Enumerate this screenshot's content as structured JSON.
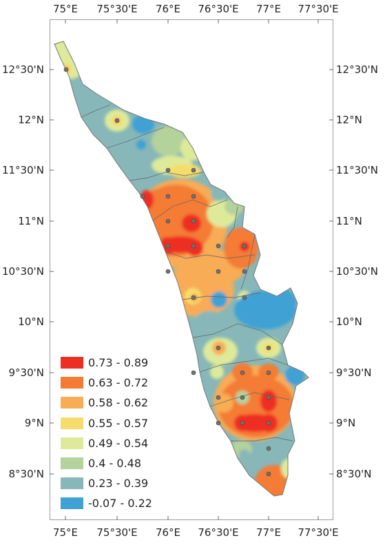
{
  "map": {
    "longitude_labels": [
      "75°E",
      "75°30'E",
      "76°E",
      "76°30'E",
      "77°E",
      "77°30'E"
    ],
    "latitude_labels": [
      "12°30'N",
      "12°N",
      "11°30'N",
      "11°N",
      "10°30'N",
      "10°N",
      "9°30'N",
      "9°N",
      "8°30'N"
    ]
  },
  "legend": {
    "classes": [
      {
        "label": "0.73 - 0.89",
        "color": "#ee2e24"
      },
      {
        "label": "0.63 - 0.72",
        "color": "#f47b35"
      },
      {
        "label": "0.58 - 0.62",
        "color": "#f8ac55"
      },
      {
        "label": "0.55 - 0.57",
        "color": "#f5dd6d"
      },
      {
        "label": "0.49 - 0.54",
        "color": "#deea9a"
      },
      {
        "label": "0.4 - 0.48",
        "color": "#b4d29c"
      },
      {
        "label": "0.23 - 0.39",
        "color": "#87b7b8"
      },
      {
        "label": "-0.07 - 0.22",
        "color": "#3fa1d4"
      }
    ]
  },
  "colors": {
    "frame": "#999999",
    "district_boundary": "#666666",
    "station_marker": "#707070"
  }
}
